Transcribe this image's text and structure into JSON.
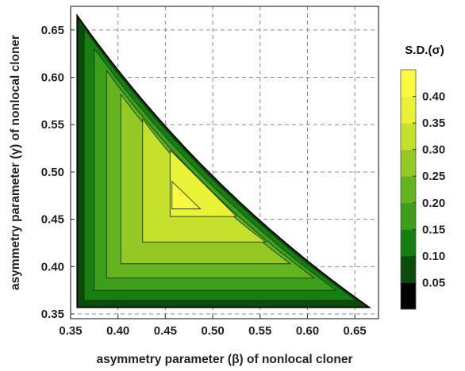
{
  "chart_data": {
    "type": "contour",
    "xlabel": "asymmetry parameter (β) of nonlocal cloner",
    "ylabel": "asymmetry parameter (γ) of nonlocal cloner",
    "xlim": [
      0.35,
      0.675
    ],
    "ylim": [
      0.345,
      0.675
    ],
    "x_ticks": [
      "0.35",
      "0.40",
      "0.45",
      "0.50",
      "0.55",
      "0.60",
      "0.65"
    ],
    "y_ticks": [
      "0.35",
      "0.40",
      "0.45",
      "0.50",
      "0.55",
      "0.60",
      "0.65"
    ],
    "grid": true,
    "legend_title": "S.D.(σ)",
    "legend_position": "right",
    "legend_levels": [
      "0.05",
      "0.10",
      "0.15",
      "0.20",
      "0.25",
      "0.30",
      "0.35",
      "0.40"
    ],
    "legend_colors": [
      "#000000",
      "#0a4c0a",
      "#157f12",
      "#3c9e1a",
      "#64b420",
      "#94c824",
      "#c4e02a",
      "#e9f236",
      "#fafb40"
    ],
    "domain_vertices": [
      [
        0.357,
        0.665
      ],
      [
        0.357,
        0.357
      ],
      [
        0.665,
        0.357
      ]
    ],
    "domain_hypotenuse_sag": 0.028,
    "contour_levels": [
      {
        "level": 0.1,
        "fill": "#157f12",
        "vertices": [
          [
            0.3645,
            0.651
          ],
          [
            0.3645,
            0.3645
          ],
          [
            0.651,
            0.3645
          ]
        ]
      },
      {
        "level": 0.15,
        "fill": "#3c9e1a",
        "vertices": [
          [
            0.375,
            0.63
          ],
          [
            0.375,
            0.375
          ],
          [
            0.63,
            0.375
          ]
        ]
      },
      {
        "level": 0.2,
        "fill": "#64b420",
        "vertices": [
          [
            0.388,
            0.607
          ],
          [
            0.388,
            0.388
          ],
          [
            0.607,
            0.388
          ]
        ]
      },
      {
        "level": 0.25,
        "fill": "#94c824",
        "vertices": [
          [
            0.403,
            0.582
          ],
          [
            0.403,
            0.403
          ],
          [
            0.582,
            0.403
          ]
        ]
      },
      {
        "level": 0.3,
        "fill": "#c4e02a",
        "vertices": [
          [
            0.426,
            0.556
          ],
          [
            0.426,
            0.426
          ],
          [
            0.556,
            0.426
          ]
        ]
      },
      {
        "level": 0.35,
        "fill": "#e9f236",
        "vertices": [
          [
            0.455,
            0.523
          ],
          [
            0.455,
            0.453
          ],
          [
            0.525,
            0.453
          ]
        ]
      },
      {
        "level": 0.4,
        "fill": "#fafb40",
        "vertices": [
          [
            0.457,
            0.49
          ],
          [
            0.457,
            0.461
          ],
          [
            0.487,
            0.461
          ]
        ]
      }
    ]
  }
}
